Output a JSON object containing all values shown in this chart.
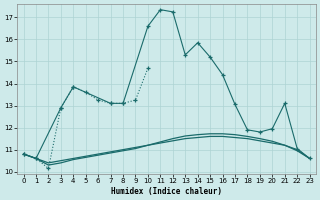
{
  "title": "",
  "xlabel": "Humidex (Indice chaleur)",
  "ylabel": "",
  "bg_color": "#ceeaea",
  "grid_color": "#aed4d4",
  "line_color": "#1a6b6b",
  "xlim": [
    -0.5,
    23.5
  ],
  "ylim": [
    9.9,
    17.6
  ],
  "yticks": [
    10,
    11,
    12,
    13,
    14,
    15,
    16,
    17
  ],
  "xticks": [
    0,
    1,
    2,
    3,
    4,
    5,
    6,
    7,
    8,
    9,
    10,
    11,
    12,
    13,
    14,
    15,
    16,
    17,
    18,
    19,
    20,
    21,
    22,
    23
  ],
  "series": [
    {
      "x": [
        0,
        1,
        2,
        3,
        4,
        5,
        6,
        7,
        8,
        9,
        10
      ],
      "y": [
        10.8,
        10.6,
        10.15,
        12.9,
        13.85,
        13.6,
        13.25,
        13.1,
        13.1,
        13.25,
        14.7
      ],
      "style": "dotted_marker"
    },
    {
      "x": [
        0,
        1,
        3,
        4,
        7,
        8,
        10,
        11,
        12,
        13,
        14,
        15,
        16,
        17,
        18,
        19,
        20,
        21,
        22,
        23
      ],
      "y": [
        10.8,
        10.6,
        12.9,
        13.85,
        13.1,
        13.1,
        16.6,
        17.35,
        17.25,
        15.3,
        15.85,
        15.2,
        14.4,
        13.05,
        11.9,
        11.8,
        11.95,
        13.1,
        11.05,
        10.6
      ],
      "style": "solid_marker"
    },
    {
      "x": [
        0,
        1,
        2,
        3,
        4,
        5,
        6,
        7,
        8,
        9,
        10,
        11,
        12,
        13,
        14,
        15,
        16,
        17,
        18,
        19,
        20,
        21,
        22,
        23
      ],
      "y": [
        10.8,
        10.6,
        10.4,
        10.5,
        10.6,
        10.7,
        10.8,
        10.9,
        11.0,
        11.1,
        11.2,
        11.3,
        11.4,
        11.5,
        11.55,
        11.6,
        11.6,
        11.55,
        11.5,
        11.4,
        11.3,
        11.2,
        11.0,
        10.6
      ],
      "style": "solid_smooth"
    },
    {
      "x": [
        0,
        1,
        2,
        3,
        4,
        5,
        6,
        7,
        8,
        9,
        10,
        11,
        12,
        13,
        14,
        15,
        16,
        17,
        18,
        19,
        20,
        21,
        22,
        23
      ],
      "y": [
        10.8,
        10.6,
        10.3,
        10.4,
        10.55,
        10.65,
        10.75,
        10.85,
        10.95,
        11.05,
        11.2,
        11.35,
        11.5,
        11.62,
        11.68,
        11.72,
        11.72,
        11.68,
        11.6,
        11.5,
        11.38,
        11.2,
        10.95,
        10.6
      ],
      "style": "solid_smooth"
    }
  ]
}
